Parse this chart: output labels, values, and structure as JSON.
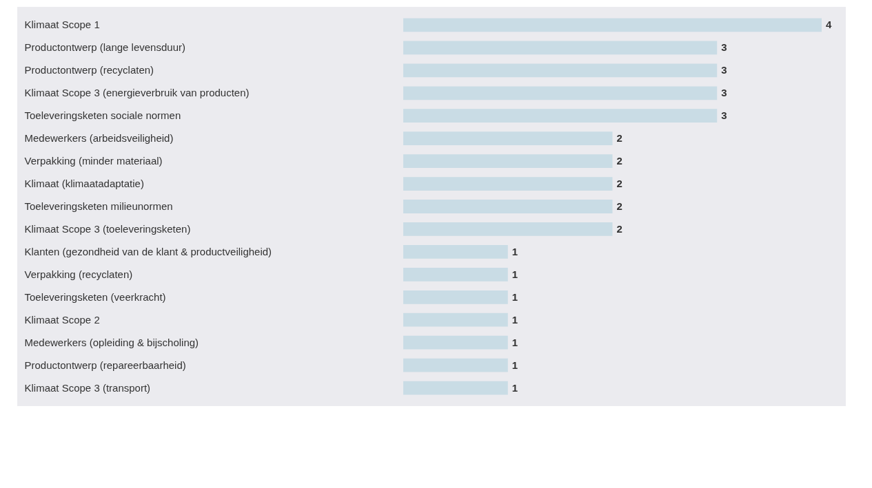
{
  "chart_data": {
    "type": "bar",
    "orientation": "horizontal",
    "data_labels": true,
    "color": "#c9dce5",
    "categories": [
      "Klimaat Scope 1",
      "Productontwerp (lange levensduur)",
      "Productontwerp (recyclaten)",
      "Klimaat Scope 3 (energieverbruik van producten)",
      "Toeleveringsketen sociale normen",
      "Medewerkers (arbeidsveiligheid)",
      "Verpakking (minder materiaal)",
      "Klimaat (klimaatadaptatie)",
      "Toeleveringsketen milieunormen",
      "Klimaat Scope 3 (toeleveringsketen)",
      "Klanten (gezondheid van de klant & productveiligheid)",
      "Verpakking (recyclaten)",
      "Toeleveringsketen  (veerkracht)",
      "Klimaat Scope 2",
      "Medewerkers (opleiding & bijscholing)",
      "Productontwerp (repareerbaarheid)",
      "Klimaat Scope 3 (transport)"
    ],
    "values": [
      4,
      3,
      3,
      3,
      3,
      2,
      2,
      2,
      2,
      2,
      1,
      1,
      1,
      1,
      1,
      1,
      1
    ]
  }
}
